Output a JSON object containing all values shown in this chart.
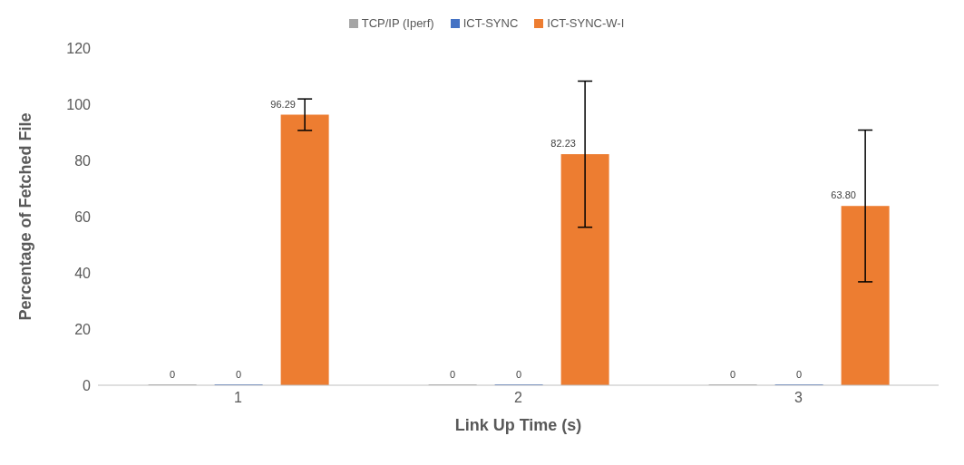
{
  "chart_data": {
    "type": "bar",
    "xlabel": "Link Up Time (s)",
    "ylabel": "Percentage of Fetched File",
    "categories": [
      "1",
      "2",
      "3"
    ],
    "series": [
      {
        "name": "TCP/IP (Iperf)",
        "color": "#a5a5a5",
        "values": [
          0,
          0,
          0
        ],
        "value_labels": [
          "0",
          "0",
          "0"
        ]
      },
      {
        "name": "ICT-SYNC",
        "color": "#4472c4",
        "values": [
          0,
          0,
          0
        ],
        "value_labels": [
          "0",
          "0",
          "0"
        ]
      },
      {
        "name": "ICT-SYNC-W-I",
        "color": "#ed7d31",
        "values": [
          96.29,
          82.23,
          63.8
        ],
        "value_labels": [
          "96.29",
          "82.23",
          "63.80"
        ],
        "errors": [
          5.6,
          26,
          27
        ]
      }
    ],
    "ylim": [
      0,
      120
    ],
    "yticks": [
      0,
      20,
      40,
      60,
      80,
      100,
      120
    ],
    "grid": false,
    "legend": "top"
  }
}
